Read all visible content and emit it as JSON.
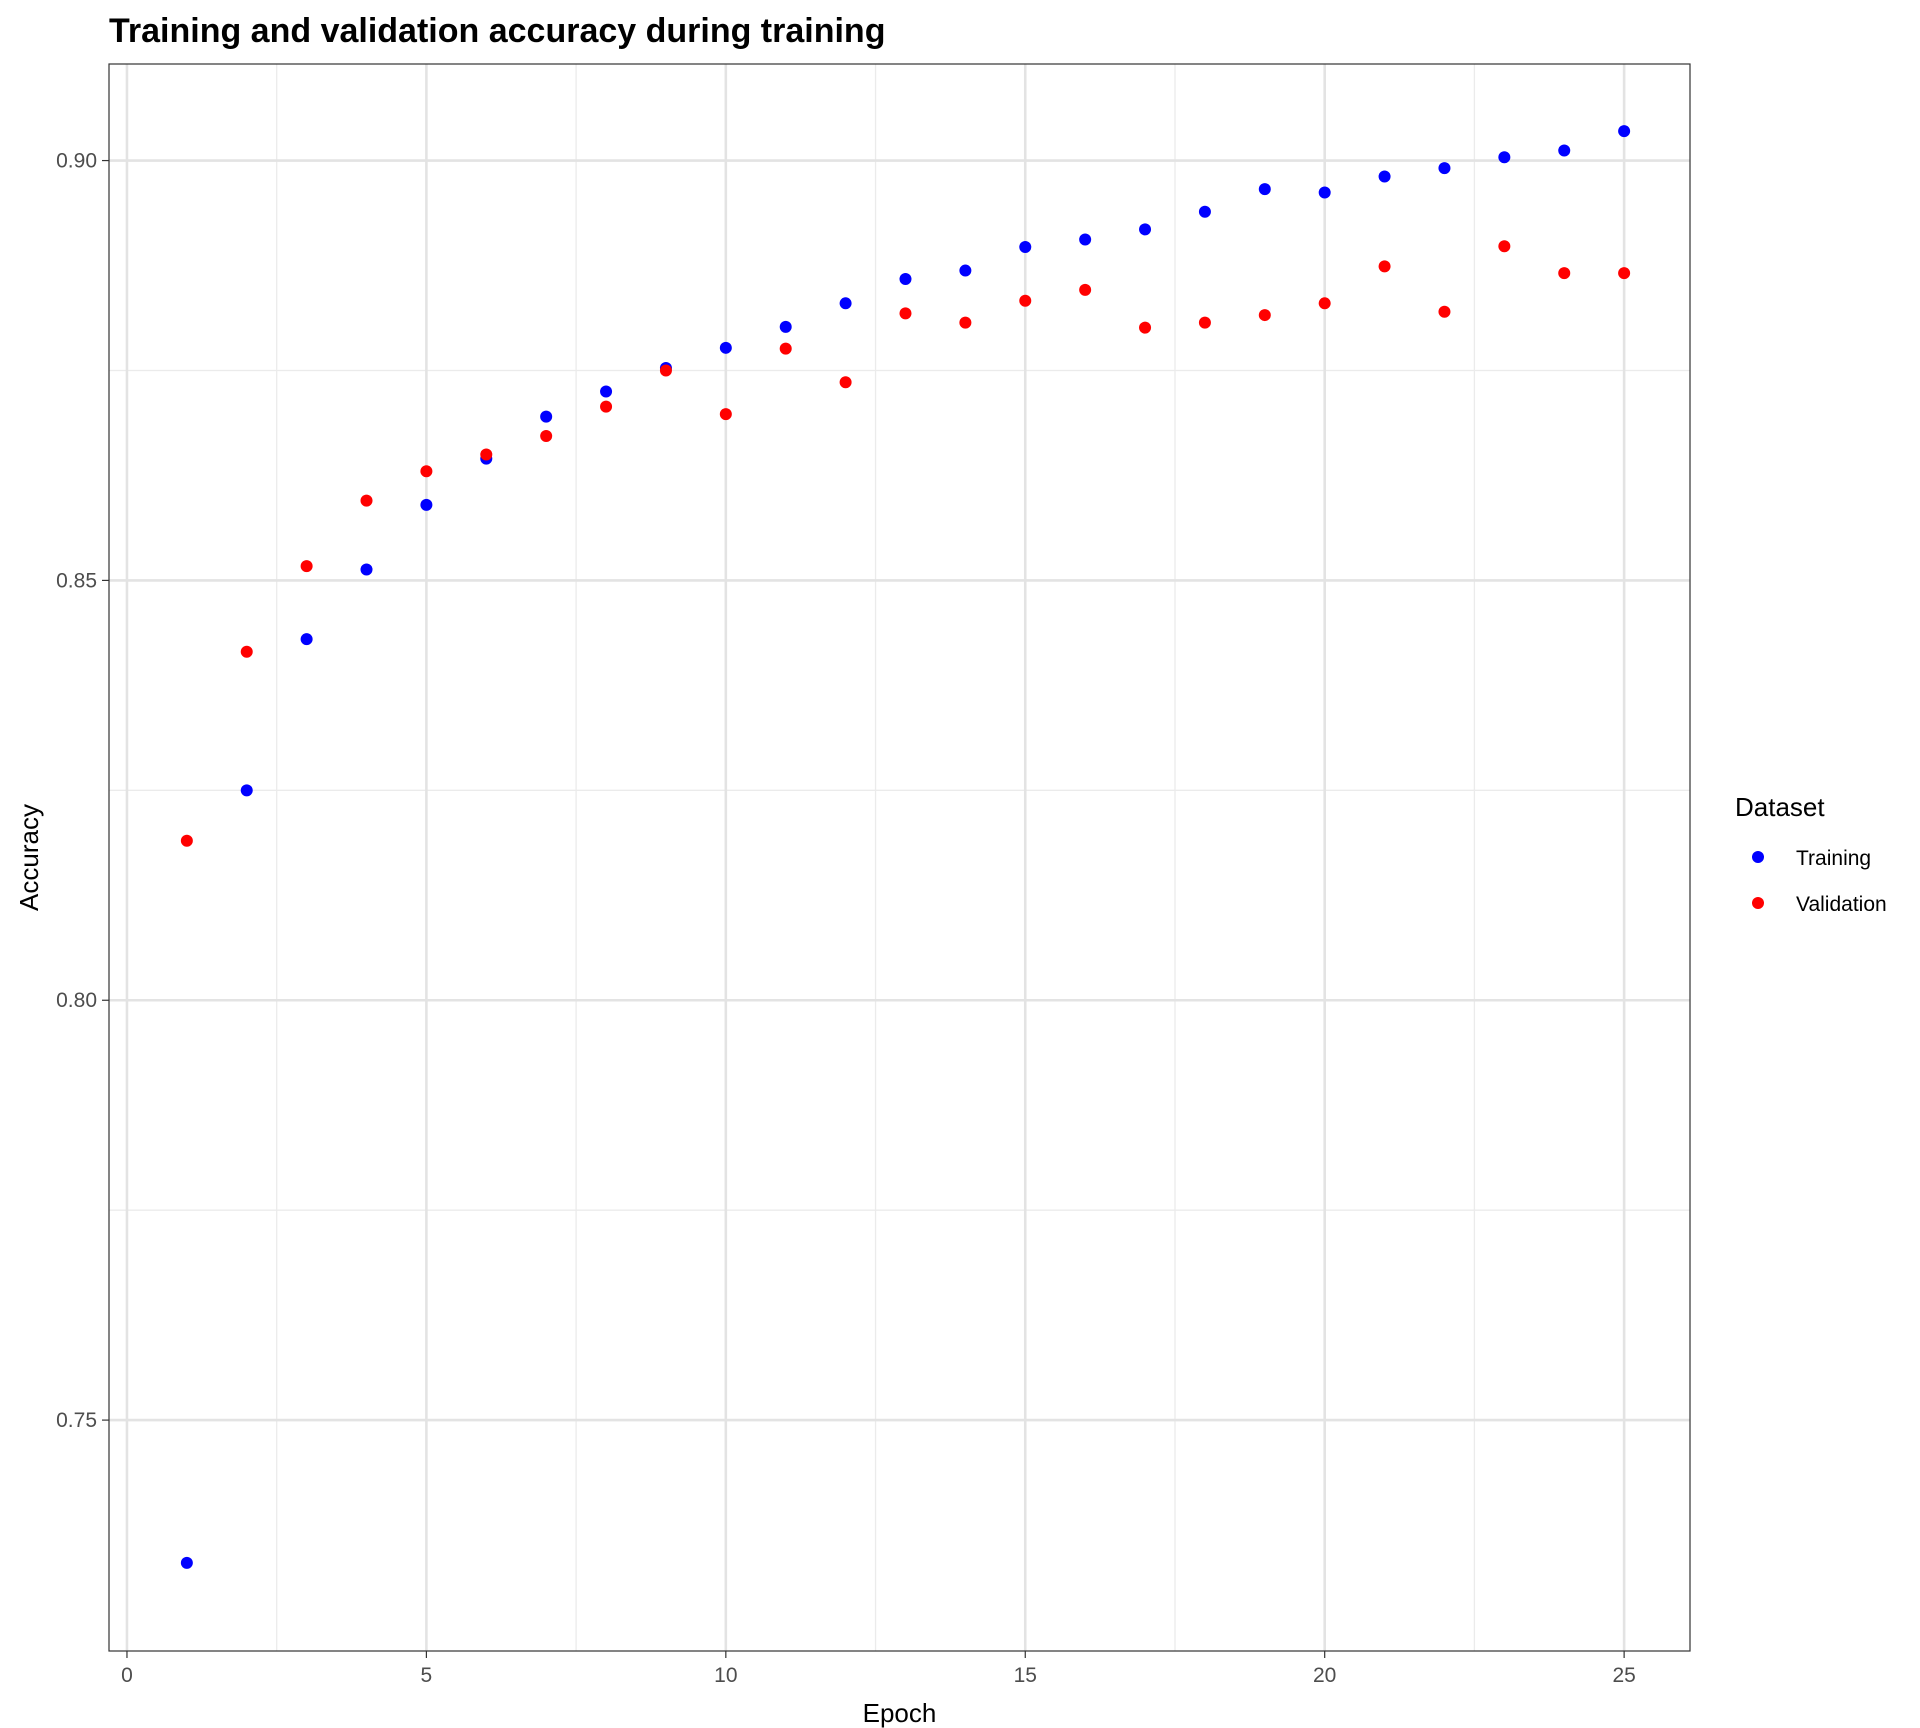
{
  "chart_data": {
    "type": "scatter",
    "title": "Training and validation accuracy during training",
    "xlabel": "Epoch",
    "ylabel": "Accuracy",
    "xlim": [
      -0.3,
      26.1
    ],
    "ylim": [
      0.7225,
      0.9115
    ],
    "x_ticks": [
      0,
      5,
      10,
      15,
      20,
      25
    ],
    "x_tick_labels": [
      "0",
      "5",
      "10",
      "15",
      "20",
      "25"
    ],
    "x_minor_ticks": [
      2.5,
      7.5,
      12.5,
      17.5,
      22.5
    ],
    "y_ticks": [
      0.75,
      0.8,
      0.85,
      0.9
    ],
    "y_tick_labels": [
      "0.75",
      "0.80",
      "0.85",
      "0.90"
    ],
    "y_minor_ticks": [
      0.775,
      0.825,
      0.875
    ],
    "grid": true,
    "legend": {
      "title": "Dataset",
      "position": "right"
    },
    "x": [
      1,
      2,
      3,
      4,
      5,
      6,
      7,
      8,
      9,
      10,
      11,
      12,
      13,
      14,
      15,
      16,
      17,
      18,
      19,
      20,
      21,
      22,
      23,
      24,
      25
    ],
    "series": [
      {
        "name": "Training",
        "color": "#0000ff",
        "values": [
          0.733,
          0.825,
          0.843,
          0.8513,
          0.859,
          0.8645,
          0.8695,
          0.8725,
          0.8753,
          0.8777,
          0.8802,
          0.883,
          0.8859,
          0.8869,
          0.8897,
          0.8906,
          0.8918,
          0.8939,
          0.8966,
          0.8962,
          0.8981,
          0.8991,
          0.9004,
          0.9012,
          0.9035
        ]
      },
      {
        "name": "Validation",
        "color": "#ff0000",
        "values": [
          0.819,
          0.8415,
          0.8517,
          0.8595,
          0.863,
          0.865,
          0.8672,
          0.8707,
          0.875,
          0.8698,
          0.8776,
          0.8736,
          0.8818,
          0.8807,
          0.8833,
          0.8846,
          0.8801,
          0.8807,
          0.8816,
          0.883,
          0.8874,
          0.882,
          0.8898,
          0.8866,
          0.8866
        ]
      }
    ]
  }
}
